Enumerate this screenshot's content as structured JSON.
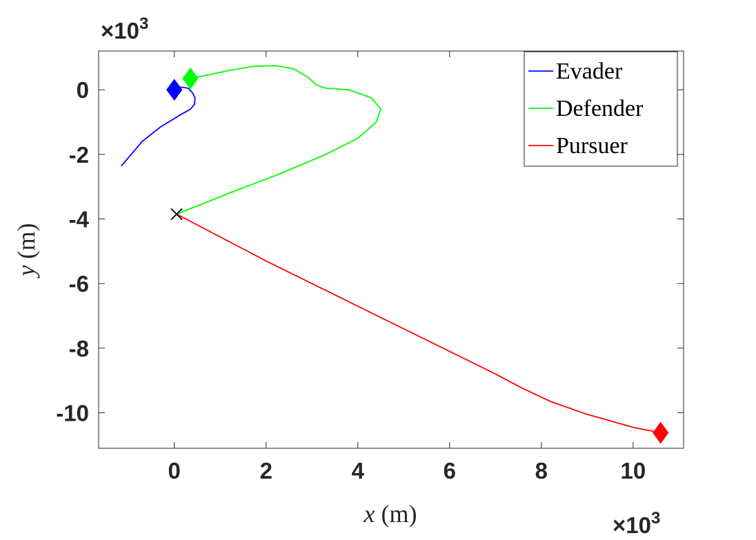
{
  "chart_data": {
    "type": "line",
    "xlabel": {
      "var": "x",
      "unit": " (m)"
    },
    "ylabel": {
      "var": "y",
      "unit": " (m)"
    },
    "x_multiplier": {
      "sign": "×",
      "base": "10",
      "exp": "3"
    },
    "y_multiplier": {
      "sign": "×",
      "base": "10",
      "exp": "3"
    },
    "xlim": [
      -1.65,
      11.1
    ],
    "ylim": [
      -11.1,
      1.2
    ],
    "xticks": [
      0,
      2,
      4,
      6,
      8,
      10
    ],
    "xtick_labels": [
      "0",
      "2",
      "4",
      "6",
      "8",
      "10"
    ],
    "yticks": [
      0,
      -2,
      -4,
      -6,
      -8,
      -10
    ],
    "ytick_labels": [
      "0",
      "-2",
      "-4",
      "-6",
      "-8",
      "-10"
    ],
    "grid": false,
    "legend_position": "top-right",
    "series": [
      {
        "name": "Evader",
        "color": "#0000ff",
        "x": [
          0.0,
          0.15,
          0.3,
          0.4,
          0.45,
          0.44,
          0.35,
          0.1,
          -0.3,
          -0.7,
          -1.15
        ],
        "y": [
          0.0,
          0.08,
          0.05,
          -0.1,
          -0.25,
          -0.45,
          -0.6,
          -0.8,
          -1.15,
          -1.6,
          -2.35
        ],
        "start_marker": {
          "x": 0.0,
          "y": 0.0
        }
      },
      {
        "name": "Defender",
        "color": "#00ff00",
        "x": [
          0.35,
          0.7,
          1.2,
          1.7,
          2.2,
          2.6,
          2.9,
          3.1,
          3.3,
          3.8,
          4.3,
          4.5,
          4.4,
          4.0,
          3.3,
          2.3,
          1.2,
          0.05
        ],
        "y": [
          0.35,
          0.45,
          0.6,
          0.72,
          0.75,
          0.65,
          0.4,
          0.15,
          0.05,
          0.0,
          -0.25,
          -0.6,
          -1.0,
          -1.5,
          -2.0,
          -2.6,
          -3.2,
          -3.85
        ],
        "start_marker": {
          "x": 0.35,
          "y": 0.35
        }
      },
      {
        "name": "Pursuer",
        "color": "#ff0000",
        "x": [
          0.05,
          2.0,
          4.0,
          6.0,
          7.0,
          7.6,
          8.2,
          9.0,
          10.0,
          10.6
        ],
        "y": [
          -3.85,
          -5.3,
          -6.7,
          -8.1,
          -8.8,
          -9.25,
          -9.65,
          -10.05,
          -10.45,
          -10.62
        ],
        "start_marker": {
          "x": 10.6,
          "y": -10.62
        }
      }
    ],
    "intercept_marker": {
      "x": 0.05,
      "y": -3.85,
      "color": "#000000"
    }
  }
}
